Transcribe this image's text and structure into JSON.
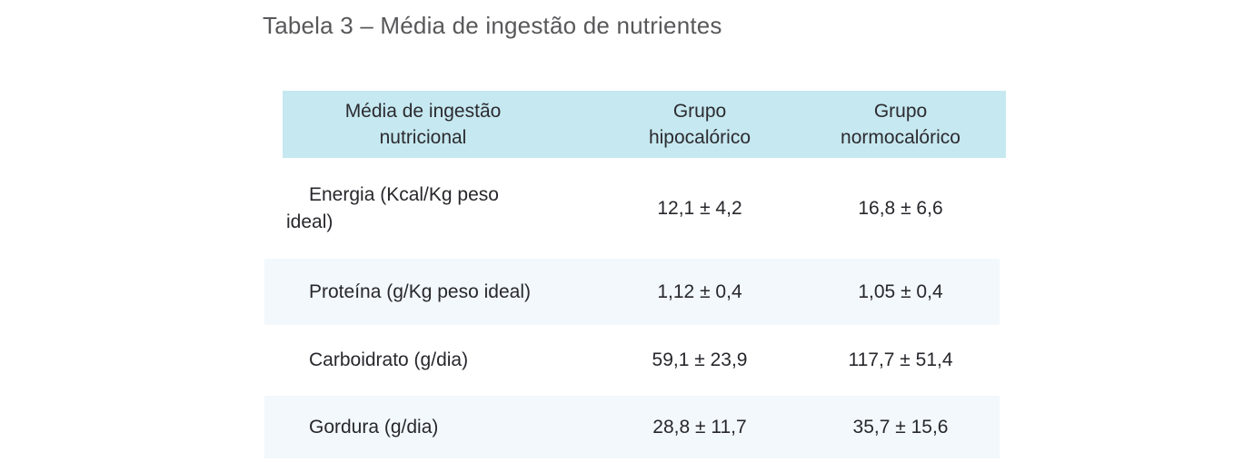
{
  "title": "Tabela 3 – Média de ingestão de nutrientes",
  "colors": {
    "header_bg": "#c6e8f0",
    "row_stripe_bg": "#f2f8fc",
    "title_text": "#58585b",
    "body_text": "#27272c"
  },
  "table": {
    "headers": [
      "Média de ingestão\nnutricional",
      "Grupo\nhipocalórico",
      "Grupo\nnormocalórico"
    ],
    "rows": [
      {
        "label": "Energia (Kcal/Kg peso\nideal)",
        "values": [
          "12,1 ± 4,2",
          "16,8 ± 6,6"
        ]
      },
      {
        "label": "Proteína (g/Kg peso ideal)",
        "values": [
          "1,12 ± 0,4",
          "1,05 ± 0,4"
        ]
      },
      {
        "label": "Carboidrato (g/dia)",
        "values": [
          "59,1 ± 23,9",
          "117,7 ± 51,4"
        ]
      },
      {
        "label": "Gordura (g/dia)",
        "values": [
          "28,8 ± 11,7",
          "35,7 ± 15,6"
        ]
      }
    ]
  }
}
